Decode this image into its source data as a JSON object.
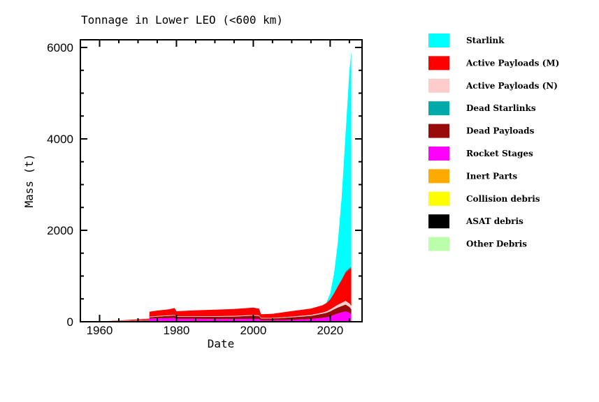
{
  "chart_data": {
    "type": "area",
    "stacked": true,
    "title": "Tonnage in Lower LEO (<600 km)",
    "xlabel": "Date",
    "ylabel": "Mass (t)",
    "xlim": [
      1955,
      2028.3
    ],
    "ylim": [
      0,
      6150
    ],
    "xticks": [
      1960,
      1980,
      2000,
      2020
    ],
    "yticks": [
      0,
      2000,
      4000,
      6000
    ],
    "legend_position": "right",
    "x": [
      1957,
      1960,
      1965,
      1970,
      1972.9,
      1973,
      1975,
      1978,
      1979.5,
      1980,
      1985,
      1990,
      1995,
      2000,
      2001.5,
      2002,
      2005,
      2010,
      2015,
      2018,
      2019,
      2020,
      2021,
      2022,
      2023,
      2024,
      2025,
      2025.5
    ],
    "series": [
      {
        "name": "Other Debris",
        "color": "#bbffaa",
        "values": [
          0,
          0,
          0,
          0,
          0,
          0,
          0,
          0,
          0,
          0,
          0,
          0,
          0,
          0,
          0,
          0,
          0,
          0,
          0,
          0,
          0,
          0,
          0,
          0,
          0,
          0,
          0,
          0
        ]
      },
      {
        "name": "ASAT debris",
        "color": "#000000",
        "values": [
          0,
          0,
          0,
          0,
          0,
          0,
          0,
          0,
          0,
          0,
          0,
          0,
          0,
          0,
          0,
          0,
          0,
          0,
          0,
          0,
          0,
          0,
          0,
          0,
          0,
          0,
          0,
          0
        ]
      },
      {
        "name": "Collision debris",
        "color": "#ffff00",
        "values": [
          0,
          0,
          0,
          0,
          0,
          0,
          0,
          0,
          0,
          0,
          0,
          0,
          0,
          0,
          0,
          0,
          0,
          0,
          0,
          0,
          0,
          0,
          0,
          0,
          0,
          0,
          0,
          0
        ]
      },
      {
        "name": "Inert Parts",
        "color": "#ffaa00",
        "values": [
          0,
          0,
          1,
          2,
          2,
          3,
          3,
          3,
          3,
          3,
          3,
          3,
          3,
          3,
          3,
          2,
          2,
          3,
          4,
          5,
          6,
          8,
          10,
          12,
          14,
          16,
          15,
          15
        ]
      },
      {
        "name": "Rocket Stages",
        "color": "#ff00ff",
        "values": [
          0,
          2,
          8,
          15,
          20,
          65,
          70,
          75,
          80,
          60,
          60,
          55,
          55,
          60,
          55,
          30,
          30,
          40,
          55,
          80,
          90,
          110,
          140,
          170,
          190,
          210,
          180,
          150
        ]
      },
      {
        "name": "Dead Payloads",
        "color": "#990a0a",
        "values": [
          0,
          1,
          5,
          10,
          12,
          30,
          40,
          50,
          55,
          45,
          45,
          50,
          55,
          70,
          65,
          40,
          40,
          55,
          70,
          90,
          100,
          110,
          120,
          130,
          140,
          150,
          130,
          110
        ]
      },
      {
        "name": "Active Payloads (N)",
        "color": "#ffcccc",
        "values": [
          0,
          1,
          4,
          6,
          8,
          12,
          12,
          12,
          12,
          12,
          12,
          14,
          15,
          15,
          14,
          12,
          12,
          15,
          20,
          25,
          30,
          40,
          50,
          60,
          70,
          80,
          75,
          70
        ]
      },
      {
        "name": "Active Payloads (M)",
        "color": "#ff0000",
        "values": [
          0,
          2,
          10,
          20,
          25,
          110,
          120,
          130,
          150,
          110,
          130,
          140,
          150,
          160,
          150,
          80,
          90,
          120,
          140,
          160,
          180,
          220,
          300,
          400,
          500,
          620,
          750,
          830
        ]
      },
      {
        "name": "Dead Starlinks",
        "color": "#00aaaa",
        "values": [
          0,
          0,
          0,
          0,
          0,
          0,
          0,
          0,
          0,
          0,
          0,
          0,
          0,
          0,
          0,
          0,
          0,
          0,
          0,
          0,
          2,
          5,
          10,
          15,
          20,
          25,
          30,
          30
        ]
      },
      {
        "name": "Starlink",
        "color": "#00ffff",
        "values": [
          0,
          0,
          0,
          0,
          0,
          0,
          0,
          0,
          0,
          0,
          0,
          0,
          0,
          0,
          0,
          0,
          0,
          0,
          0,
          0,
          10,
          120,
          420,
          950,
          1800,
          3000,
          4300,
          4700
        ]
      }
    ],
    "legend": [
      "Starlink",
      "Active Payloads (M)",
      "Active Payloads (N)",
      "Dead Starlinks",
      "Dead Payloads",
      "Rocket Stages",
      "Inert Parts",
      "Collision debris",
      "ASAT debris",
      "Other Debris"
    ],
    "legend_colors": [
      "#00ffff",
      "#ff0000",
      "#ffcccc",
      "#00aaaa",
      "#990a0a",
      "#ff00ff",
      "#ffaa00",
      "#ffff00",
      "#000000",
      "#bbffaa"
    ]
  }
}
